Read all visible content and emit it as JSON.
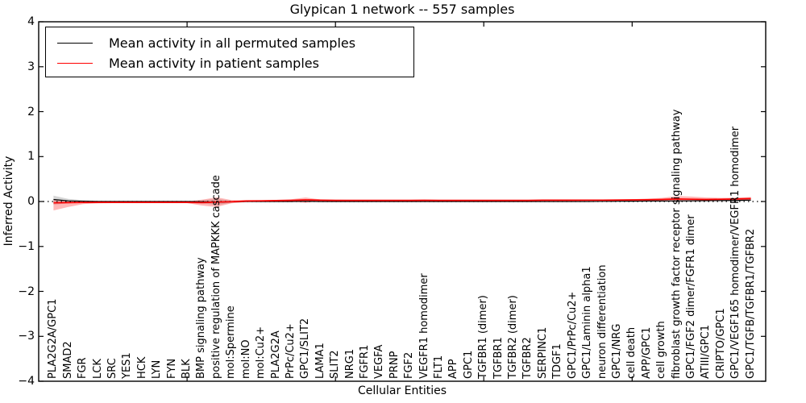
{
  "chart_data": {
    "type": "line",
    "title": "Glypican 1 network -- 557 samples",
    "xlabel": "Cellular Entities",
    "ylabel": "Inferred Activity",
    "ylim": [
      -4,
      4
    ],
    "yticks": [
      -4,
      -3,
      -2,
      -1,
      0,
      1,
      2,
      3,
      4
    ],
    "xlim": [
      0,
      49
    ],
    "xticks": [
      10,
      20,
      30,
      40
    ],
    "grid": false,
    "legend_position": "upper left",
    "zero_line_style": "dotted",
    "categories": [
      "PLA2G2A/GPC1",
      "SMAD2",
      "FGR",
      "LCK",
      "SRC",
      "YES1",
      "HCK",
      "LYN",
      "FYN",
      "BLK",
      "BMP signaling pathway",
      "positive regulation of MAPKKK cascade",
      "mol:Spermine",
      "mol:NO",
      "mol:Cu2+",
      "PLA2G2A",
      "PrPc/Cu2+",
      "GPC1/SLIT2",
      "LAMA1",
      "SLIT2",
      "NRG1",
      "FGFR1",
      "VEGFA",
      "PRNP",
      "FGF2",
      "VEGFR1 homodimer",
      "FLT1",
      "APP",
      "GPC1",
      "TGFBR1 (dimer)",
      "TGFBR1",
      "TGFBR2 (dimer)",
      "TGFBR2",
      "SERPINC1",
      "TDGF1",
      "GPC1/PrPc/Cu2+",
      "GPC1/Laminin alpha1",
      "neuron differentiation",
      "GPC1/NRG",
      "cell death",
      "APP/GPC1",
      "cell growth",
      "fibroblast growth factor receptor signaling pathway",
      "GPC1/FGF2 dimer/FGFR1 dimer",
      "ATIII/GPC1",
      "CRIPTO/GPC1",
      "GPC1/VEGF165 homodimer/VEGFR1 homodimer",
      "GPC1/TGFB/TGFBR1/TGFBR2"
    ],
    "series": [
      {
        "name": "Mean activity in all permuted samples",
        "color": "#000000",
        "band_color": "#000000",
        "band_opacity": 0.16,
        "values": [
          0.045,
          0.015,
          0.005,
          0,
          0,
          0,
          0,
          0,
          0,
          0,
          -0.005,
          -0.015,
          -0.008,
          0,
          0,
          0,
          0,
          0.005,
          0,
          0,
          0,
          0,
          0,
          0,
          0,
          0,
          0,
          0,
          0,
          0,
          0,
          0,
          0,
          0,
          0,
          0,
          0,
          0.003,
          0.005,
          0.008,
          0.01,
          0.01,
          0.012,
          0.015,
          0.02,
          0.022,
          0.025,
          0.03
        ],
        "band_upper": [
          0.13,
          0.06,
          0.03,
          0.015,
          0.01,
          0.01,
          0.01,
          0.01,
          0.01,
          0.01,
          0.03,
          0.055,
          0.02,
          0.01,
          0.01,
          0.01,
          0.012,
          0.015,
          0.01,
          0.01,
          0.01,
          0.01,
          0.01,
          0.01,
          0.01,
          0.012,
          0.01,
          0.01,
          0.01,
          0.01,
          0.01,
          0.01,
          0.01,
          0.01,
          0.01,
          0.01,
          0.012,
          0.015,
          0.015,
          0.018,
          0.02,
          0.022,
          0.03,
          0.035,
          0.04,
          0.042,
          0.048,
          0.055
        ],
        "band_lower": [
          -0.07,
          -0.04,
          -0.02,
          -0.015,
          -0.01,
          -0.01,
          -0.01,
          -0.01,
          -0.01,
          -0.01,
          -0.04,
          -0.075,
          -0.03,
          -0.01,
          -0.01,
          -0.01,
          -0.01,
          -0.008,
          -0.01,
          -0.01,
          -0.01,
          -0.01,
          -0.01,
          -0.01,
          -0.01,
          -0.01,
          -0.01,
          -0.01,
          -0.01,
          -0.01,
          -0.01,
          -0.01,
          -0.01,
          -0.01,
          -0.01,
          -0.01,
          -0.008,
          -0.006,
          -0.005,
          -0.003,
          0,
          0,
          -0.005,
          -0.002,
          0,
          0.002,
          0.004,
          0.006
        ]
      },
      {
        "name": "Mean activity in patient samples",
        "color": "#ff0000",
        "band_color": "#ff0000",
        "band_opacity": 0.28,
        "values": [
          -0.03,
          -0.025,
          -0.022,
          -0.02,
          -0.02,
          -0.02,
          -0.02,
          -0.02,
          -0.02,
          -0.02,
          -0.025,
          -0.012,
          -0.005,
          0.01,
          0.015,
          0.02,
          0.025,
          0.035,
          0.028,
          0.025,
          0.025,
          0.025,
          0.025,
          0.025,
          0.025,
          0.027,
          0.025,
          0.025,
          0.025,
          0.025,
          0.025,
          0.025,
          0.025,
          0.028,
          0.028,
          0.028,
          0.03,
          0.03,
          0.032,
          0.035,
          0.04,
          0.045,
          0.055,
          0.05,
          0.045,
          0.05,
          0.055,
          0.065
        ],
        "band_upper": [
          0.03,
          0,
          -0.005,
          -0.002,
          0,
          0,
          0,
          0,
          0,
          0,
          0.04,
          0.095,
          0.03,
          0.03,
          0.03,
          0.035,
          0.05,
          0.09,
          0.045,
          0.04,
          0.035,
          0.035,
          0.035,
          0.035,
          0.035,
          0.04,
          0.035,
          0.035,
          0.035,
          0.035,
          0.035,
          0.035,
          0.035,
          0.04,
          0.04,
          0.04,
          0.042,
          0.045,
          0.048,
          0.05,
          0.065,
          0.08,
          0.12,
          0.11,
          0.09,
          0.08,
          0.085,
          0.1
        ],
        "band_lower": [
          -0.2,
          -0.12,
          -0.06,
          -0.04,
          -0.035,
          -0.035,
          -0.035,
          -0.035,
          -0.035,
          -0.035,
          -0.09,
          -0.12,
          -0.04,
          -0.01,
          0,
          0.005,
          0,
          -0.03,
          0.01,
          0.012,
          0.015,
          0.015,
          0.015,
          0.015,
          0.015,
          0.015,
          0.015,
          0.015,
          0.015,
          0.015,
          0.015,
          0.015,
          0.015,
          0.018,
          0.018,
          0.018,
          0.02,
          0.02,
          0.022,
          0.025,
          0.02,
          0.02,
          0.01,
          0.015,
          0.02,
          0.025,
          0.03,
          0.035
        ]
      }
    ]
  }
}
